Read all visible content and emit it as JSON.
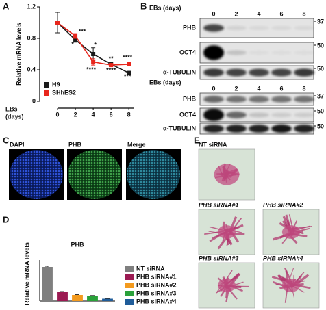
{
  "panels": [
    "A",
    "B",
    "C",
    "D",
    "E"
  ],
  "chart_data": [
    {
      "type": "line",
      "ylabel": "Relative mRNA levels",
      "xlabel": [
        "EBs",
        "(days)"
      ],
      "x": [
        0,
        2,
        4,
        6,
        8
      ],
      "xlim": [
        -2,
        8.6
      ],
      "xticks": [
        0,
        2,
        4,
        6,
        8
      ],
      "ylim": [
        0,
        1.2
      ],
      "yticks": [
        0,
        0.4,
        0.8,
        1.2
      ],
      "legend": "lower left",
      "series": [
        {
          "name": "H9",
          "color": "#1a1a1a",
          "values": [
            1.0,
            0.78,
            0.6,
            0.47,
            0.36
          ],
          "errors": [
            0.13,
            0.03,
            0.08,
            0.02,
            0.02
          ]
        },
        {
          "name": "SHhES2",
          "color": "#e8261c",
          "values": [
            1.0,
            0.83,
            0.5,
            0.46,
            0.47
          ],
          "errors": [
            0.02,
            0.03,
            0.04,
            0.02,
            0.02
          ]
        }
      ],
      "annotations": [
        "***",
        "*",
        "*",
        "****",
        "**",
        "****",
        "****",
        "***"
      ]
    },
    {
      "type": "bar",
      "title": "PHB",
      "ylabel": "Relative mRNA levels",
      "ylim": [
        0,
        1.2
      ],
      "legend": "right",
      "categories": [
        "NT siRNA",
        "PHB siRNA#1",
        "PHB siRNA#2",
        "PHB siRNA#3",
        "PHB siRNA#4"
      ],
      "values": [
        1.0,
        0.27,
        0.18,
        0.15,
        0.07
      ],
      "errors": [
        0.02,
        0.01,
        0.01,
        0.015,
        0.005
      ],
      "colors": [
        "#7f7f7f",
        "#9b1a52",
        "#f39a1e",
        "#2aa13a",
        "#1f5c99"
      ]
    }
  ],
  "blots": [
    {
      "header": "EBs (days)",
      "lanes": [
        "0",
        "2",
        "4",
        "6",
        "8"
      ],
      "rows": [
        {
          "label": "PHB",
          "marker": "37"
        },
        {
          "label": "OCT4",
          "marker": "50"
        },
        {
          "label": "α-TUBULIN",
          "marker": "50"
        }
      ]
    },
    {
      "header": "EBs (days)",
      "lanes": [
        "0",
        "2",
        "4",
        "6",
        "8"
      ],
      "rows": [
        {
          "label": "PHB",
          "marker": "37"
        },
        {
          "label": "OCT4",
          "marker": "50"
        },
        {
          "label": "α-TUBULIN",
          "marker": "50"
        }
      ]
    }
  ],
  "microscopy": {
    "labels": [
      "DAPI",
      "PHB",
      "Merge"
    ]
  },
  "colony_images": {
    "labels": [
      "NT siRNA",
      "PHB siRNA#1",
      "PHB siRNA#2",
      "PHB siRNA#3",
      "PHB siRNA#4"
    ]
  }
}
